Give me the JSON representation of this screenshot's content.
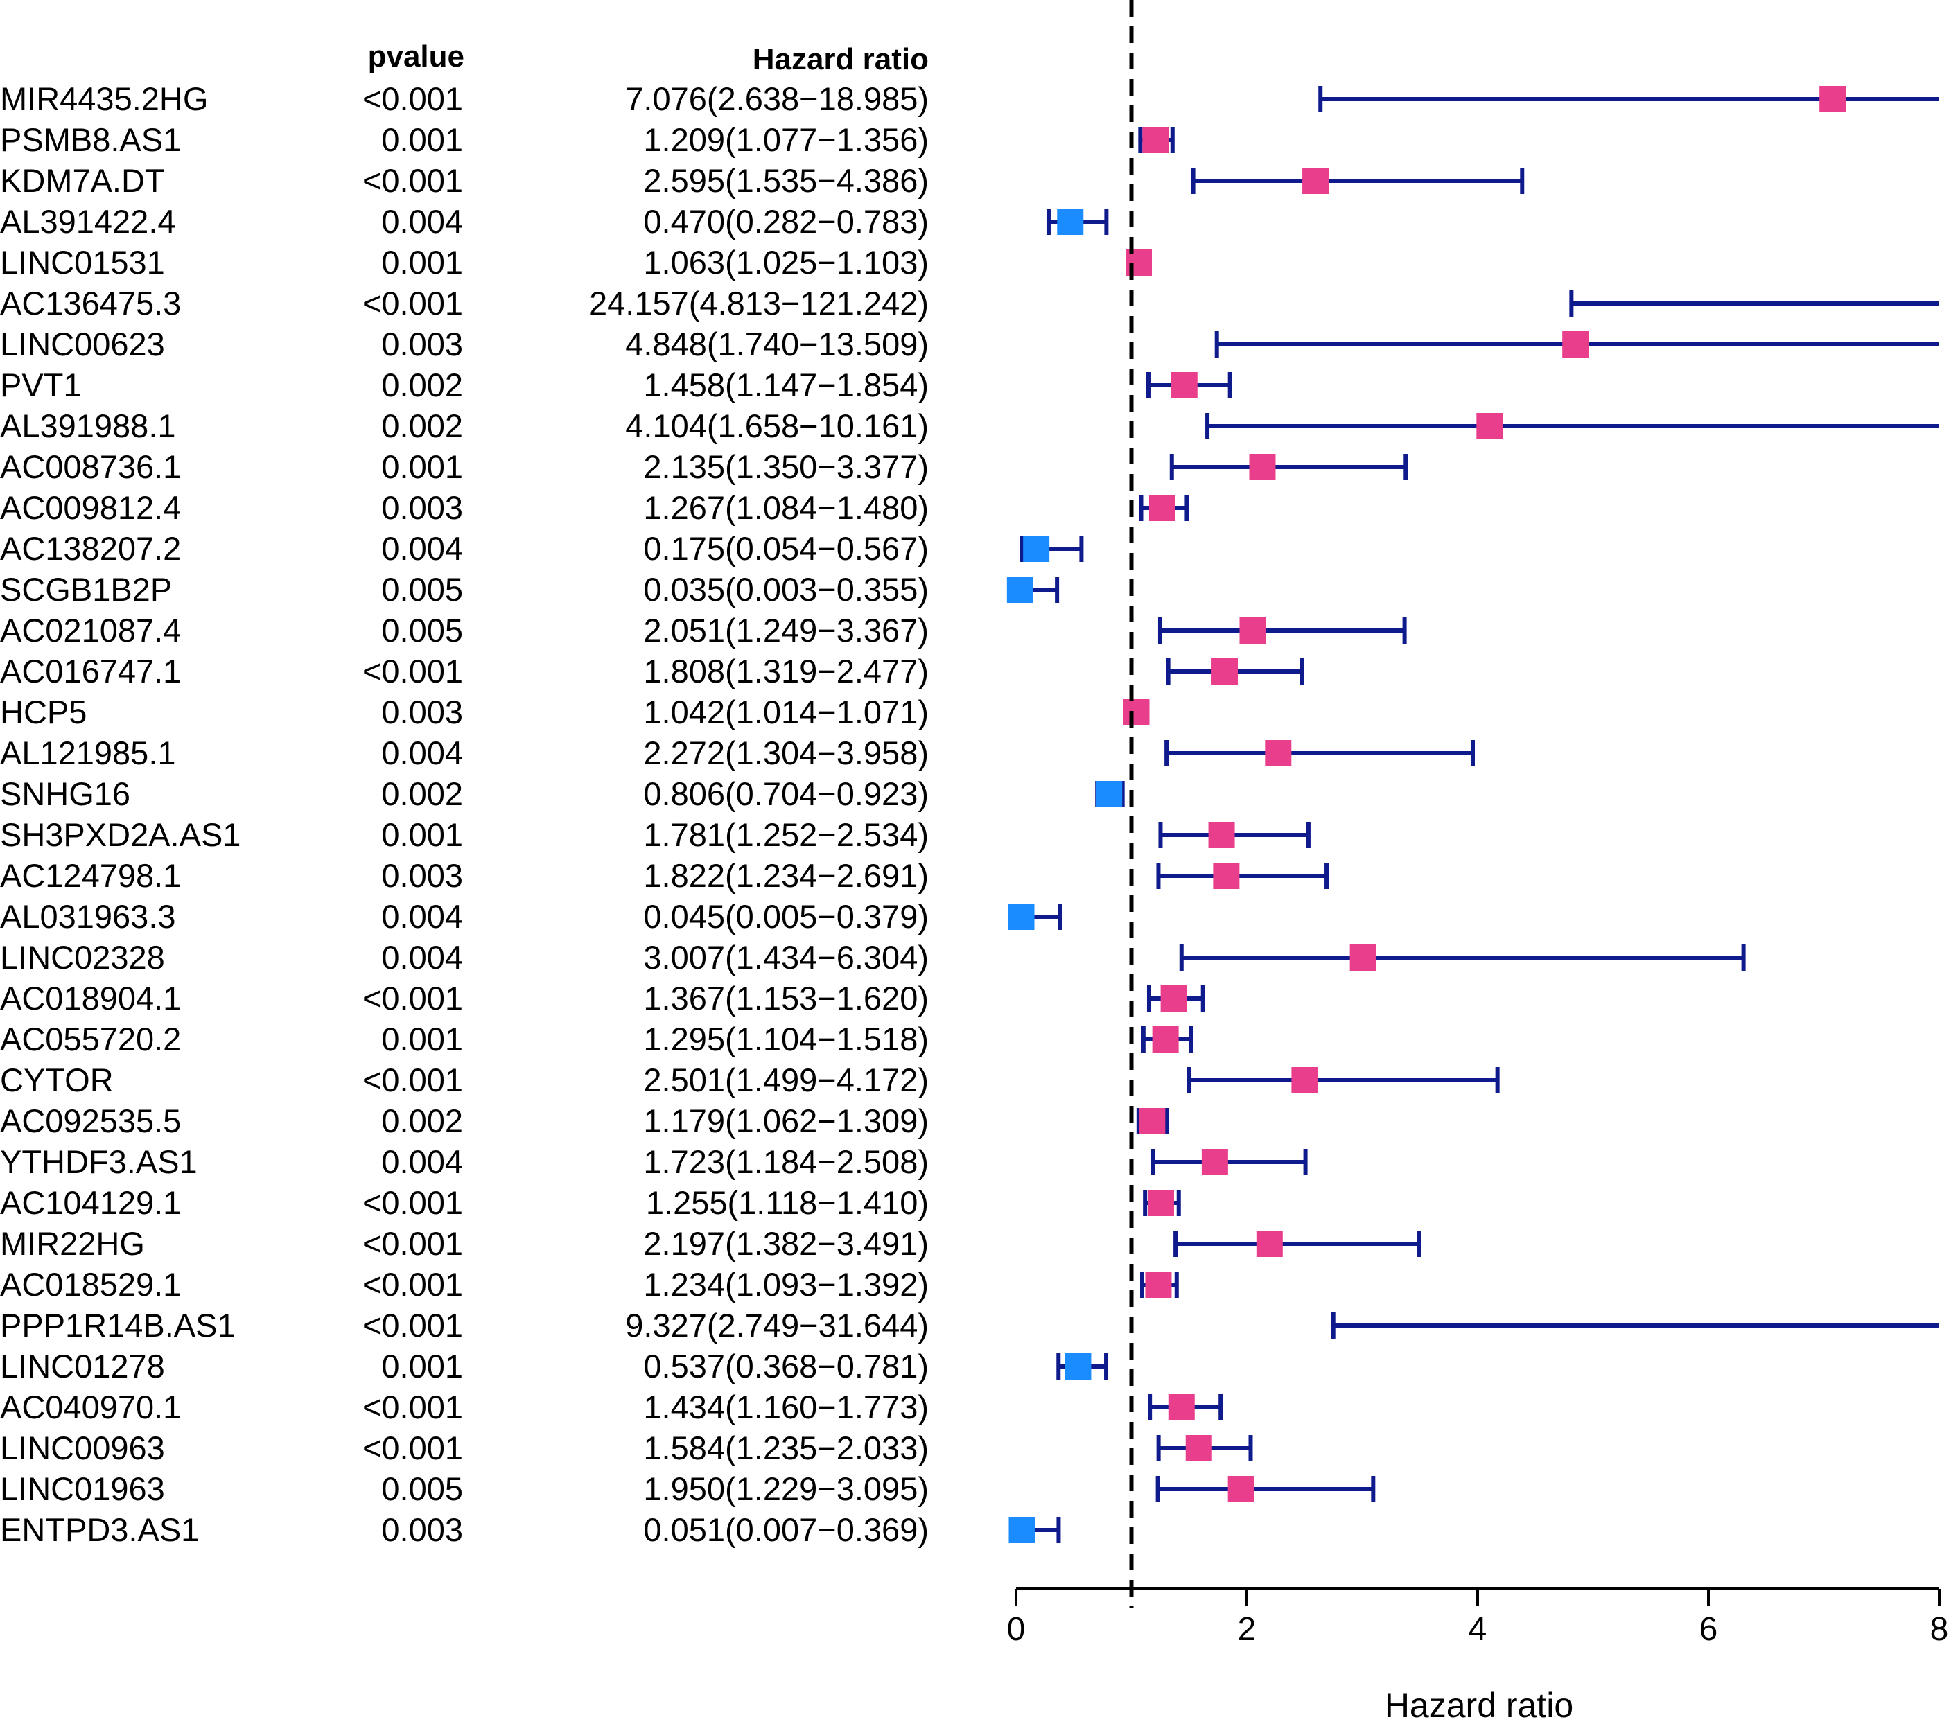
{
  "chart_data": {
    "type": "forest",
    "headers": {
      "pvalue": "pvalue",
      "hazard_ratio": "Hazard ratio"
    },
    "xlabel": "Hazard ratio",
    "xlim": [
      0,
      8
    ],
    "xticks": [
      "0",
      "2",
      "4",
      "6",
      "8"
    ],
    "reference_line": 1,
    "colors": {
      "risk": "#e83e8c",
      "protective": "#1a8cff",
      "ci_line": "#0f1a8c"
    },
    "rows": [
      {
        "gene": "MIR4435.2HG",
        "pvalue": "<0.001",
        "hr_text": "7.076(2.638−18.985)",
        "hr": 7.076,
        "lo": 2.638,
        "hi": 18.985
      },
      {
        "gene": "PSMB8.AS1",
        "pvalue": "0.001",
        "hr_text": "1.209(1.077−1.356)",
        "hr": 1.209,
        "lo": 1.077,
        "hi": 1.356
      },
      {
        "gene": "KDM7A.DT",
        "pvalue": "<0.001",
        "hr_text": "2.595(1.535−4.386)",
        "hr": 2.595,
        "lo": 1.535,
        "hi": 4.386
      },
      {
        "gene": "AL391422.4",
        "pvalue": "0.004",
        "hr_text": "0.470(0.282−0.783)",
        "hr": 0.47,
        "lo": 0.282,
        "hi": 0.783
      },
      {
        "gene": "LINC01531",
        "pvalue": "0.001",
        "hr_text": "1.063(1.025−1.103)",
        "hr": 1.063,
        "lo": 1.025,
        "hi": 1.103
      },
      {
        "gene": "AC136475.3",
        "pvalue": "<0.001",
        "hr_text": "24.157(4.813−121.242)",
        "hr": 24.157,
        "lo": 4.813,
        "hi": 121.242
      },
      {
        "gene": "LINC00623",
        "pvalue": "0.003",
        "hr_text": "4.848(1.740−13.509)",
        "hr": 4.848,
        "lo": 1.74,
        "hi": 13.509
      },
      {
        "gene": "PVT1",
        "pvalue": "0.002",
        "hr_text": "1.458(1.147−1.854)",
        "hr": 1.458,
        "lo": 1.147,
        "hi": 1.854
      },
      {
        "gene": "AL391988.1",
        "pvalue": "0.002",
        "hr_text": "4.104(1.658−10.161)",
        "hr": 4.104,
        "lo": 1.658,
        "hi": 10.161
      },
      {
        "gene": "AC008736.1",
        "pvalue": "0.001",
        "hr_text": "2.135(1.350−3.377)",
        "hr": 2.135,
        "lo": 1.35,
        "hi": 3.377
      },
      {
        "gene": "AC009812.4",
        "pvalue": "0.003",
        "hr_text": "1.267(1.084−1.480)",
        "hr": 1.267,
        "lo": 1.084,
        "hi": 1.48
      },
      {
        "gene": "AC138207.2",
        "pvalue": "0.004",
        "hr_text": "0.175(0.054−0.567)",
        "hr": 0.175,
        "lo": 0.054,
        "hi": 0.567
      },
      {
        "gene": "SCGB1B2P",
        "pvalue": "0.005",
        "hr_text": "0.035(0.003−0.355)",
        "hr": 0.035,
        "lo": 0.003,
        "hi": 0.355
      },
      {
        "gene": "AC021087.4",
        "pvalue": "0.005",
        "hr_text": "2.051(1.249−3.367)",
        "hr": 2.051,
        "lo": 1.249,
        "hi": 3.367
      },
      {
        "gene": "AC016747.1",
        "pvalue": "<0.001",
        "hr_text": "1.808(1.319−2.477)",
        "hr": 1.808,
        "lo": 1.319,
        "hi": 2.477
      },
      {
        "gene": "HCP5",
        "pvalue": "0.003",
        "hr_text": "1.042(1.014−1.071)",
        "hr": 1.042,
        "lo": 1.014,
        "hi": 1.071
      },
      {
        "gene": "AL121985.1",
        "pvalue": "0.004",
        "hr_text": "2.272(1.304−3.958)",
        "hr": 2.272,
        "lo": 1.304,
        "hi": 3.958
      },
      {
        "gene": "SNHG16",
        "pvalue": "0.002",
        "hr_text": "0.806(0.704−0.923)",
        "hr": 0.806,
        "lo": 0.704,
        "hi": 0.923
      },
      {
        "gene": "SH3PXD2A.AS1",
        "pvalue": "0.001",
        "hr_text": "1.781(1.252−2.534)",
        "hr": 1.781,
        "lo": 1.252,
        "hi": 2.534
      },
      {
        "gene": "AC124798.1",
        "pvalue": "0.003",
        "hr_text": "1.822(1.234−2.691)",
        "hr": 1.822,
        "lo": 1.234,
        "hi": 2.691
      },
      {
        "gene": "AL031963.3",
        "pvalue": "0.004",
        "hr_text": "0.045(0.005−0.379)",
        "hr": 0.045,
        "lo": 0.005,
        "hi": 0.379
      },
      {
        "gene": "LINC02328",
        "pvalue": "0.004",
        "hr_text": "3.007(1.434−6.304)",
        "hr": 3.007,
        "lo": 1.434,
        "hi": 6.304
      },
      {
        "gene": "AC018904.1",
        "pvalue": "<0.001",
        "hr_text": "1.367(1.153−1.620)",
        "hr": 1.367,
        "lo": 1.153,
        "hi": 1.62
      },
      {
        "gene": "AC055720.2",
        "pvalue": "0.001",
        "hr_text": "1.295(1.104−1.518)",
        "hr": 1.295,
        "lo": 1.104,
        "hi": 1.518
      },
      {
        "gene": "CYTOR",
        "pvalue": "<0.001",
        "hr_text": "2.501(1.499−4.172)",
        "hr": 2.501,
        "lo": 1.499,
        "hi": 4.172
      },
      {
        "gene": "AC092535.5",
        "pvalue": "0.002",
        "hr_text": "1.179(1.062−1.309)",
        "hr": 1.179,
        "lo": 1.062,
        "hi": 1.309
      },
      {
        "gene": "YTHDF3.AS1",
        "pvalue": "0.004",
        "hr_text": "1.723(1.184−2.508)",
        "hr": 1.723,
        "lo": 1.184,
        "hi": 2.508
      },
      {
        "gene": "AC104129.1",
        "pvalue": "<0.001",
        "hr_text": "1.255(1.118−1.410)",
        "hr": 1.255,
        "lo": 1.118,
        "hi": 1.41
      },
      {
        "gene": "MIR22HG",
        "pvalue": "<0.001",
        "hr_text": "2.197(1.382−3.491)",
        "hr": 2.197,
        "lo": 1.382,
        "hi": 3.491
      },
      {
        "gene": "AC018529.1",
        "pvalue": "<0.001",
        "hr_text": "1.234(1.093−1.392)",
        "hr": 1.234,
        "lo": 1.093,
        "hi": 1.392
      },
      {
        "gene": "PPP1R14B.AS1",
        "pvalue": "<0.001",
        "hr_text": "9.327(2.749−31.644)",
        "hr": 9.327,
        "lo": 2.749,
        "hi": 31.644
      },
      {
        "gene": "LINC01278",
        "pvalue": "0.001",
        "hr_text": "0.537(0.368−0.781)",
        "hr": 0.537,
        "lo": 0.368,
        "hi": 0.781
      },
      {
        "gene": "AC040970.1",
        "pvalue": "<0.001",
        "hr_text": "1.434(1.160−1.773)",
        "hr": 1.434,
        "lo": 1.16,
        "hi": 1.773
      },
      {
        "gene": "LINC00963",
        "pvalue": "<0.001",
        "hr_text": "1.584(1.235−2.033)",
        "hr": 1.584,
        "lo": 1.235,
        "hi": 2.033
      },
      {
        "gene": "LINC01963",
        "pvalue": "0.005",
        "hr_text": "1.950(1.229−3.095)",
        "hr": 1.95,
        "lo": 1.229,
        "hi": 3.095
      },
      {
        "gene": "ENTPD3.AS1",
        "pvalue": "0.003",
        "hr_text": "0.051(0.007−0.369)",
        "hr": 0.051,
        "lo": 0.007,
        "hi": 0.369
      }
    ]
  }
}
